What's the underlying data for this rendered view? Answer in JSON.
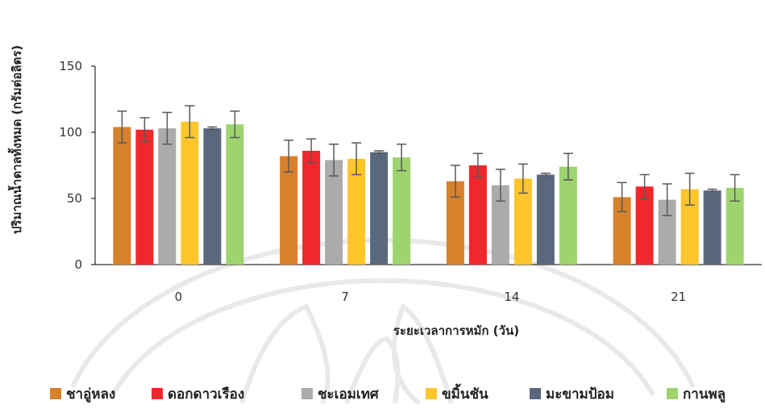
{
  "chart_data": {
    "type": "bar",
    "title": "",
    "xlabel": "ระยะเวลาการหมัก (วัน)",
    "ylabel": "ปริมาณน้ำตาลทั้งหมด (กรัมต่อลิตร)",
    "ylim": [
      0,
      150
    ],
    "yticks": [
      0,
      50,
      100,
      150
    ],
    "categories": [
      "0",
      "7",
      "14",
      "21"
    ],
    "grid": false,
    "legend_position": "bottom",
    "series": [
      {
        "name": "ชาอู่หลง",
        "color": "#D7812D",
        "values": [
          104,
          82,
          63,
          51
        ],
        "errors": [
          12,
          12,
          12,
          11
        ]
      },
      {
        "name": "ดอกดาวเรือง",
        "color": "#F0272B",
        "values": [
          102,
          86,
          75,
          59
        ],
        "errors": [
          9,
          9,
          9,
          9
        ]
      },
      {
        "name": "ชะเอมเทศ",
        "color": "#ABABAB",
        "values": [
          103,
          79,
          60,
          49
        ],
        "errors": [
          12,
          12,
          12,
          12
        ]
      },
      {
        "name": "ขมิ้นชัน",
        "color": "#FEC52D",
        "values": [
          108,
          80,
          65,
          57
        ],
        "errors": [
          12,
          12,
          11,
          12
        ]
      },
      {
        "name": "มะขามป้อม",
        "color": "#5A687D",
        "values": [
          103,
          85,
          68,
          56
        ],
        "errors": [
          1,
          1,
          1,
          1
        ]
      },
      {
        "name": "กานพลู",
        "color": "#9DD46E",
        "values": [
          106,
          81,
          74,
          58
        ],
        "errors": [
          10,
          10,
          10,
          10
        ]
      }
    ]
  }
}
